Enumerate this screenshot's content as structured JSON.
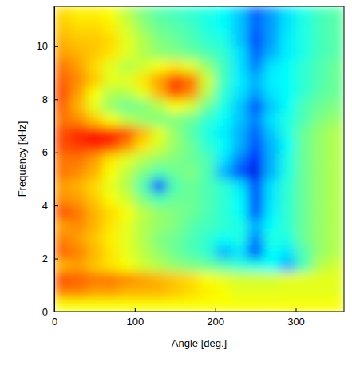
{
  "chart_data": {
    "type": "heatmap",
    "x_label": "Angle [deg.]",
    "y_label": "Frequency [kHz]",
    "xlim": [
      0,
      360
    ],
    "xticks": [
      0,
      100,
      200,
      300
    ],
    "ylim": [
      0,
      11.5
    ],
    "yticks": [
      0,
      2,
      4,
      6,
      8,
      10
    ],
    "zlim": [
      0,
      1
    ],
    "x": [
      10,
      30,
      50,
      70,
      90,
      110,
      130,
      150,
      170,
      190,
      210,
      230,
      250,
      270,
      290,
      310,
      330,
      350
    ],
    "y": [
      0.25,
      0.75,
      1.25,
      1.75,
      2.25,
      2.75,
      3.25,
      3.75,
      4.25,
      4.75,
      5.25,
      5.75,
      6.25,
      6.75,
      7.25,
      7.75,
      8.25,
      8.75,
      9.25,
      9.75,
      10.25,
      10.75,
      11.25
    ],
    "z": [
      [
        0.62,
        0.62,
        0.62,
        0.62,
        0.62,
        0.62,
        0.62,
        0.62,
        0.62,
        0.62,
        0.62,
        0.62,
        0.62,
        0.62,
        0.62,
        0.62,
        0.62,
        0.62
      ],
      [
        0.75,
        0.75,
        0.72,
        0.72,
        0.7,
        0.7,
        0.7,
        0.68,
        0.66,
        0.64,
        0.62,
        0.6,
        0.6,
        0.6,
        0.6,
        0.6,
        0.6,
        0.6
      ],
      [
        0.8,
        0.78,
        0.76,
        0.76,
        0.74,
        0.72,
        0.7,
        0.68,
        0.66,
        0.62,
        0.6,
        0.58,
        0.58,
        0.58,
        0.6,
        0.6,
        0.6,
        0.6
      ],
      [
        0.7,
        0.72,
        0.68,
        0.65,
        0.62,
        0.58,
        0.55,
        0.52,
        0.5,
        0.48,
        0.45,
        0.42,
        0.4,
        0.38,
        0.3,
        0.45,
        0.55,
        0.58
      ],
      [
        0.78,
        0.75,
        0.7,
        0.65,
        0.6,
        0.56,
        0.52,
        0.48,
        0.45,
        0.42,
        0.3,
        0.35,
        0.2,
        0.38,
        0.35,
        0.45,
        0.52,
        0.55
      ],
      [
        0.75,
        0.72,
        0.68,
        0.64,
        0.6,
        0.55,
        0.5,
        0.48,
        0.45,
        0.42,
        0.38,
        0.4,
        0.25,
        0.4,
        0.4,
        0.48,
        0.52,
        0.55
      ],
      [
        0.72,
        0.74,
        0.7,
        0.65,
        0.6,
        0.55,
        0.52,
        0.5,
        0.46,
        0.44,
        0.42,
        0.4,
        0.3,
        0.38,
        0.42,
        0.48,
        0.52,
        0.55
      ],
      [
        0.8,
        0.76,
        0.7,
        0.66,
        0.62,
        0.56,
        0.52,
        0.5,
        0.48,
        0.45,
        0.42,
        0.38,
        0.2,
        0.36,
        0.42,
        0.48,
        0.52,
        0.55
      ],
      [
        0.74,
        0.72,
        0.68,
        0.62,
        0.58,
        0.5,
        0.45,
        0.48,
        0.48,
        0.45,
        0.42,
        0.38,
        0.2,
        0.35,
        0.42,
        0.48,
        0.52,
        0.55
      ],
      [
        0.72,
        0.7,
        0.66,
        0.6,
        0.55,
        0.45,
        0.2,
        0.45,
        0.48,
        0.45,
        0.42,
        0.35,
        0.2,
        0.35,
        0.42,
        0.48,
        0.52,
        0.55
      ],
      [
        0.76,
        0.74,
        0.7,
        0.62,
        0.56,
        0.5,
        0.45,
        0.48,
        0.5,
        0.45,
        0.3,
        0.2,
        0.1,
        0.3,
        0.4,
        0.48,
        0.52,
        0.55
      ],
      [
        0.76,
        0.76,
        0.72,
        0.65,
        0.6,
        0.55,
        0.52,
        0.5,
        0.48,
        0.45,
        0.35,
        0.25,
        0.15,
        0.3,
        0.4,
        0.48,
        0.52,
        0.55
      ],
      [
        0.8,
        0.82,
        0.84,
        0.82,
        0.74,
        0.65,
        0.58,
        0.52,
        0.48,
        0.42,
        0.38,
        0.3,
        0.2,
        0.3,
        0.38,
        0.48,
        0.52,
        0.55
      ],
      [
        0.8,
        0.84,
        0.86,
        0.85,
        0.8,
        0.7,
        0.6,
        0.52,
        0.46,
        0.4,
        0.36,
        0.3,
        0.22,
        0.32,
        0.4,
        0.48,
        0.52,
        0.55
      ],
      [
        0.76,
        0.74,
        0.68,
        0.62,
        0.56,
        0.52,
        0.5,
        0.5,
        0.48,
        0.42,
        0.38,
        0.32,
        0.25,
        0.35,
        0.4,
        0.45,
        0.5,
        0.52
      ],
      [
        0.78,
        0.7,
        0.6,
        0.52,
        0.48,
        0.5,
        0.55,
        0.62,
        0.58,
        0.48,
        0.4,
        0.32,
        0.2,
        0.32,
        0.38,
        0.45,
        0.48,
        0.5
      ],
      [
        0.8,
        0.72,
        0.62,
        0.55,
        0.55,
        0.6,
        0.7,
        0.8,
        0.74,
        0.55,
        0.42,
        0.35,
        0.28,
        0.35,
        0.38,
        0.42,
        0.46,
        0.48
      ],
      [
        0.78,
        0.74,
        0.68,
        0.6,
        0.6,
        0.65,
        0.72,
        0.82,
        0.76,
        0.58,
        0.44,
        0.36,
        0.3,
        0.36,
        0.38,
        0.42,
        0.45,
        0.48
      ],
      [
        0.76,
        0.72,
        0.66,
        0.6,
        0.55,
        0.58,
        0.62,
        0.65,
        0.6,
        0.52,
        0.44,
        0.35,
        0.25,
        0.35,
        0.38,
        0.42,
        0.45,
        0.48
      ],
      [
        0.72,
        0.7,
        0.68,
        0.65,
        0.6,
        0.55,
        0.52,
        0.5,
        0.48,
        0.45,
        0.42,
        0.35,
        0.22,
        0.3,
        0.36,
        0.4,
        0.44,
        0.46
      ],
      [
        0.7,
        0.68,
        0.68,
        0.66,
        0.6,
        0.55,
        0.5,
        0.48,
        0.45,
        0.42,
        0.4,
        0.32,
        0.2,
        0.28,
        0.36,
        0.4,
        0.44,
        0.46
      ],
      [
        0.68,
        0.66,
        0.66,
        0.64,
        0.58,
        0.52,
        0.48,
        0.46,
        0.44,
        0.4,
        0.38,
        0.32,
        0.22,
        0.28,
        0.35,
        0.4,
        0.44,
        0.46
      ],
      [
        0.66,
        0.64,
        0.64,
        0.62,
        0.56,
        0.5,
        0.46,
        0.44,
        0.42,
        0.4,
        0.38,
        0.32,
        0.22,
        0.28,
        0.35,
        0.4,
        0.44,
        0.46
      ]
    ]
  }
}
